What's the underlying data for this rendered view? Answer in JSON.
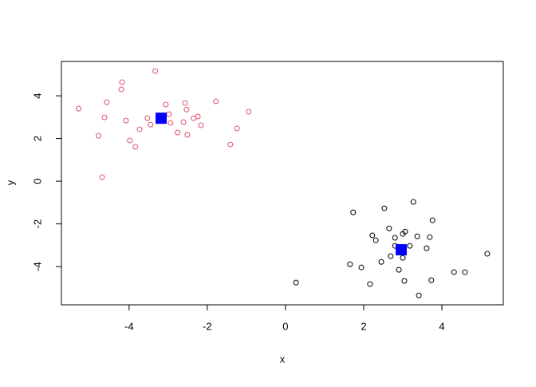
{
  "chart_data": {
    "type": "scatter",
    "xlabel": "x",
    "ylabel": "y",
    "xlim": [
      -5.73,
      5.57
    ],
    "ylim": [
      -5.79,
      5.61
    ],
    "xticks": [
      -4,
      -2,
      0,
      2,
      4
    ],
    "yticks": [
      -4,
      -2,
      0,
      2,
      4
    ],
    "series": [
      {
        "color": "#DF536B",
        "marker": "circle",
        "x": [
          -3.33,
          -4.18,
          -4.2,
          -4.57,
          -5.29,
          -3.06,
          -2.57,
          -2.53,
          -1.78,
          -0.94,
          -4.63,
          -4.08,
          -3.53,
          -2.98,
          -2.94,
          -3.45,
          -3.73,
          -2.61,
          -2.35,
          -2.24,
          -2.16,
          -1.24,
          -2.76,
          -2.51,
          -4.78,
          -3.98,
          -3.84,
          -1.41,
          -4.69
        ],
        "y": [
          5.16,
          4.64,
          4.3,
          3.7,
          3.4,
          3.59,
          3.66,
          3.36,
          3.74,
          3.25,
          2.99,
          2.84,
          2.95,
          3.14,
          2.73,
          2.65,
          2.43,
          2.77,
          2.95,
          3.03,
          2.62,
          2.47,
          2.28,
          2.17,
          2.13,
          1.91,
          1.61,
          1.72,
          0.19
        ]
      },
      {
        "color": "#000000",
        "marker": "circle",
        "x": [
          3.27,
          1.73,
          2.53,
          3.76,
          2.65,
          3.06,
          3.0,
          2.22,
          2.31,
          2.8,
          3.37,
          3.69,
          2.8,
          3.18,
          3.61,
          5.16,
          2.69,
          3.0,
          2.45,
          1.65,
          1.94,
          2.9,
          4.31,
          4.59,
          3.73,
          3.04,
          2.16,
          0.27,
          3.41
        ],
        "y": [
          -0.97,
          -1.46,
          -1.27,
          -1.83,
          -2.21,
          -2.36,
          -2.47,
          -2.54,
          -2.77,
          -2.65,
          -2.58,
          -2.62,
          -3.03,
          -3.03,
          -3.14,
          -3.4,
          -3.51,
          -3.59,
          -3.78,
          -3.89,
          -4.04,
          -4.15,
          -4.26,
          -4.26,
          -4.64,
          -4.67,
          -4.82,
          -4.75,
          -5.35
        ]
      },
      {
        "color": "#0000FF",
        "marker": "square",
        "x": [
          -3.18,
          2.96
        ],
        "y": [
          2.95,
          -3.21
        ]
      }
    ]
  }
}
